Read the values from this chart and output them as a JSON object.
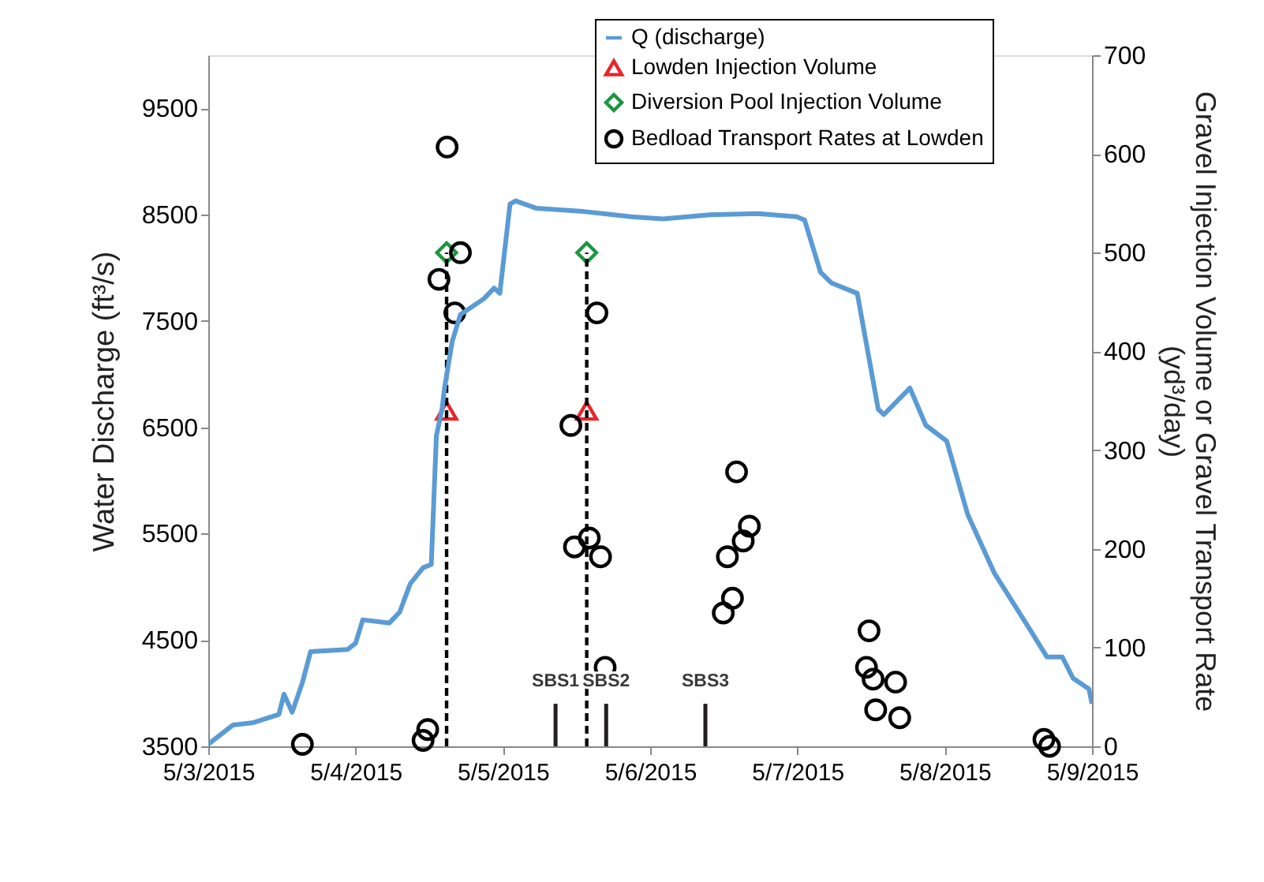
{
  "chart_data": {
    "type": "line",
    "ylabel": "Water Discharge (ft³/s)",
    "y2label": "Gravel Injection Volume or Gravel Transport Rate\n(yd³/day)",
    "xlim": [
      "2015-05-03",
      "2015-05-09"
    ],
    "xticks": [
      {
        "value": "2015-05-03",
        "label": "5/3/2015"
      },
      {
        "value": "2015-05-04",
        "label": "5/4/2015"
      },
      {
        "value": "2015-05-05",
        "label": "5/5/2015"
      },
      {
        "value": "2015-05-06",
        "label": "5/6/2015"
      },
      {
        "value": "2015-05-07",
        "label": "5/7/2015"
      },
      {
        "value": "2015-05-08",
        "label": "5/8/2015"
      },
      {
        "value": "2015-05-09",
        "label": "5/9/2015"
      }
    ],
    "ylim": [
      3500,
      10000
    ],
    "yticks": [
      3500,
      4500,
      5500,
      6500,
      7500,
      8500,
      9500
    ],
    "y2lim": [
      0,
      700
    ],
    "y2ticks": [
      0,
      100,
      200,
      300,
      400,
      500,
      600,
      700
    ],
    "grid": false,
    "legend": "top right",
    "series": [
      {
        "name": "Q (discharge)",
        "color": "#5b9bd5",
        "marker": "none",
        "line_style": "solid",
        "x": [
          "2015-05-03T00:00",
          "2015-05-03T04:00",
          "2015-05-03T07:10",
          "2015-05-03T11:30",
          "2015-05-03T12:20",
          "2015-05-03T13:40",
          "2015-05-03T15:20",
          "2015-05-03T16:40",
          "2015-05-03T22:40",
          "2015-05-04T00:00",
          "2015-05-04T01:10",
          "2015-05-04T05:30",
          "2015-05-04T07:10",
          "2015-05-04T08:55",
          "2015-05-04T11:00",
          "2015-05-04T12:20",
          "2015-05-04T13:10",
          "2015-05-04T14:05",
          "2015-05-04T14:30",
          "2015-05-04T15:45",
          "2015-05-04T17:05",
          "2015-05-04T20:55",
          "2015-05-04T22:35",
          "2015-05-04T23:30",
          "2015-05-05T01:10",
          "2015-05-05T02:05",
          "2015-05-05T05:30",
          "2015-05-05T13:10",
          "2015-05-05T20:55",
          "2015-05-06T02:05",
          "2015-05-06T09:45",
          "2015-05-06T17:30",
          "2015-05-06T23:55",
          "2015-05-07T01:10",
          "2015-05-07T03:45",
          "2015-05-07T05:30",
          "2015-05-07T09:45",
          "2015-05-07T13:10",
          "2015-05-07T14:05",
          "2015-05-07T18:20",
          "2015-05-07T20:55",
          "2015-05-08T00:20",
          "2015-05-08T03:45",
          "2015-05-08T08:05",
          "2015-05-08T14:05",
          "2015-05-08T16:40",
          "2015-05-08T19:10",
          "2015-05-08T20:55",
          "2015-05-08T23:30",
          "2015-05-09T00:00"
        ],
        "values": [
          3520,
          3700,
          3720,
          3800,
          3990,
          3820,
          4100,
          4390,
          4410,
          4470,
          4690,
          4660,
          4760,
          5030,
          5180,
          5210,
          6420,
          6670,
          6870,
          7310,
          7560,
          7710,
          7810,
          7760,
          8600,
          8630,
          8560,
          8530,
          8480,
          8460,
          8500,
          8510,
          8480,
          8450,
          7960,
          7860,
          7760,
          6670,
          6620,
          6870,
          6520,
          6370,
          5680,
          5130,
          4580,
          4340,
          4340,
          4140,
          4040,
          3900
        ]
      },
      {
        "name": "Lowden Injection Volume",
        "type": "scatter",
        "axis": "y2",
        "color": "#e8262a",
        "marker": "triangle",
        "x": [
          "2015-05-04T14:50",
          "2015-05-05T13:40"
        ],
        "values": [
          340,
          340
        ]
      },
      {
        "name": "Diversion Pool Injection Volume",
        "type": "scatter",
        "axis": "y2",
        "color": "#1a9641",
        "marker": "diamond",
        "x": [
          "2015-05-04T14:50",
          "2015-05-05T13:40"
        ],
        "values": [
          500,
          500
        ]
      },
      {
        "name": "Bedload Transport Rates at Lowden",
        "type": "scatter",
        "axis": "y2",
        "color": "#000000",
        "marker": "circle",
        "x": [
          "2015-05-04T14:55",
          "2015-05-04T13:35",
          "2015-05-04T17:05",
          "2015-05-04T16:10",
          "2015-05-03T15:20",
          "2015-05-04T11:00",
          "2015-05-04T11:45",
          "2015-05-05T11:05",
          "2015-05-05T11:40",
          "2015-05-05T14:05",
          "2015-05-05T15:55",
          "2015-05-05T16:40",
          "2015-05-05T15:20",
          "2015-05-06T14:05",
          "2015-05-06T12:35",
          "2015-05-06T13:25",
          "2015-05-06T11:55",
          "2015-05-06T15:10",
          "2015-05-06T16:10",
          "2015-05-07T11:40",
          "2015-05-07T11:15",
          "2015-05-07T12:20",
          "2015-05-07T12:45",
          "2015-05-07T16:00",
          "2015-05-07T16:40",
          "2015-05-08T16:10",
          "2015-05-08T17:05"
        ],
        "values": [
          607,
          473,
          500,
          439,
          2,
          6,
          17,
          325,
          202,
          211,
          192,
          80,
          439,
          278,
          192,
          150,
          135,
          208,
          223,
          117,
          80,
          68,
          37,
          65,
          29,
          7,
          0
        ]
      },
      {
        "axis": "y2",
        "color": "#000000",
        "line_style": "dashed",
        "x": [
          "2015-05-04T14:50",
          "2015-05-04T14:50"
        ],
        "values": [
          0,
          500
        ]
      },
      {
        "axis": "y2",
        "color": "#000000",
        "line_style": "dashed",
        "x": [
          "2015-05-05T13:40",
          "2015-05-05T13:40"
        ],
        "values": [
          0,
          500
        ]
      },
      {
        "type": "bar",
        "color": "#231f20",
        "x": [
          "2015-05-05T08:35",
          "2015-05-05T16:50",
          "2015-05-06T09:00"
        ],
        "values": [
          3900,
          3900,
          3900
        ],
        "value_labels": [
          "SBS1",
          "SBS2",
          "SBS3"
        ]
      }
    ]
  }
}
